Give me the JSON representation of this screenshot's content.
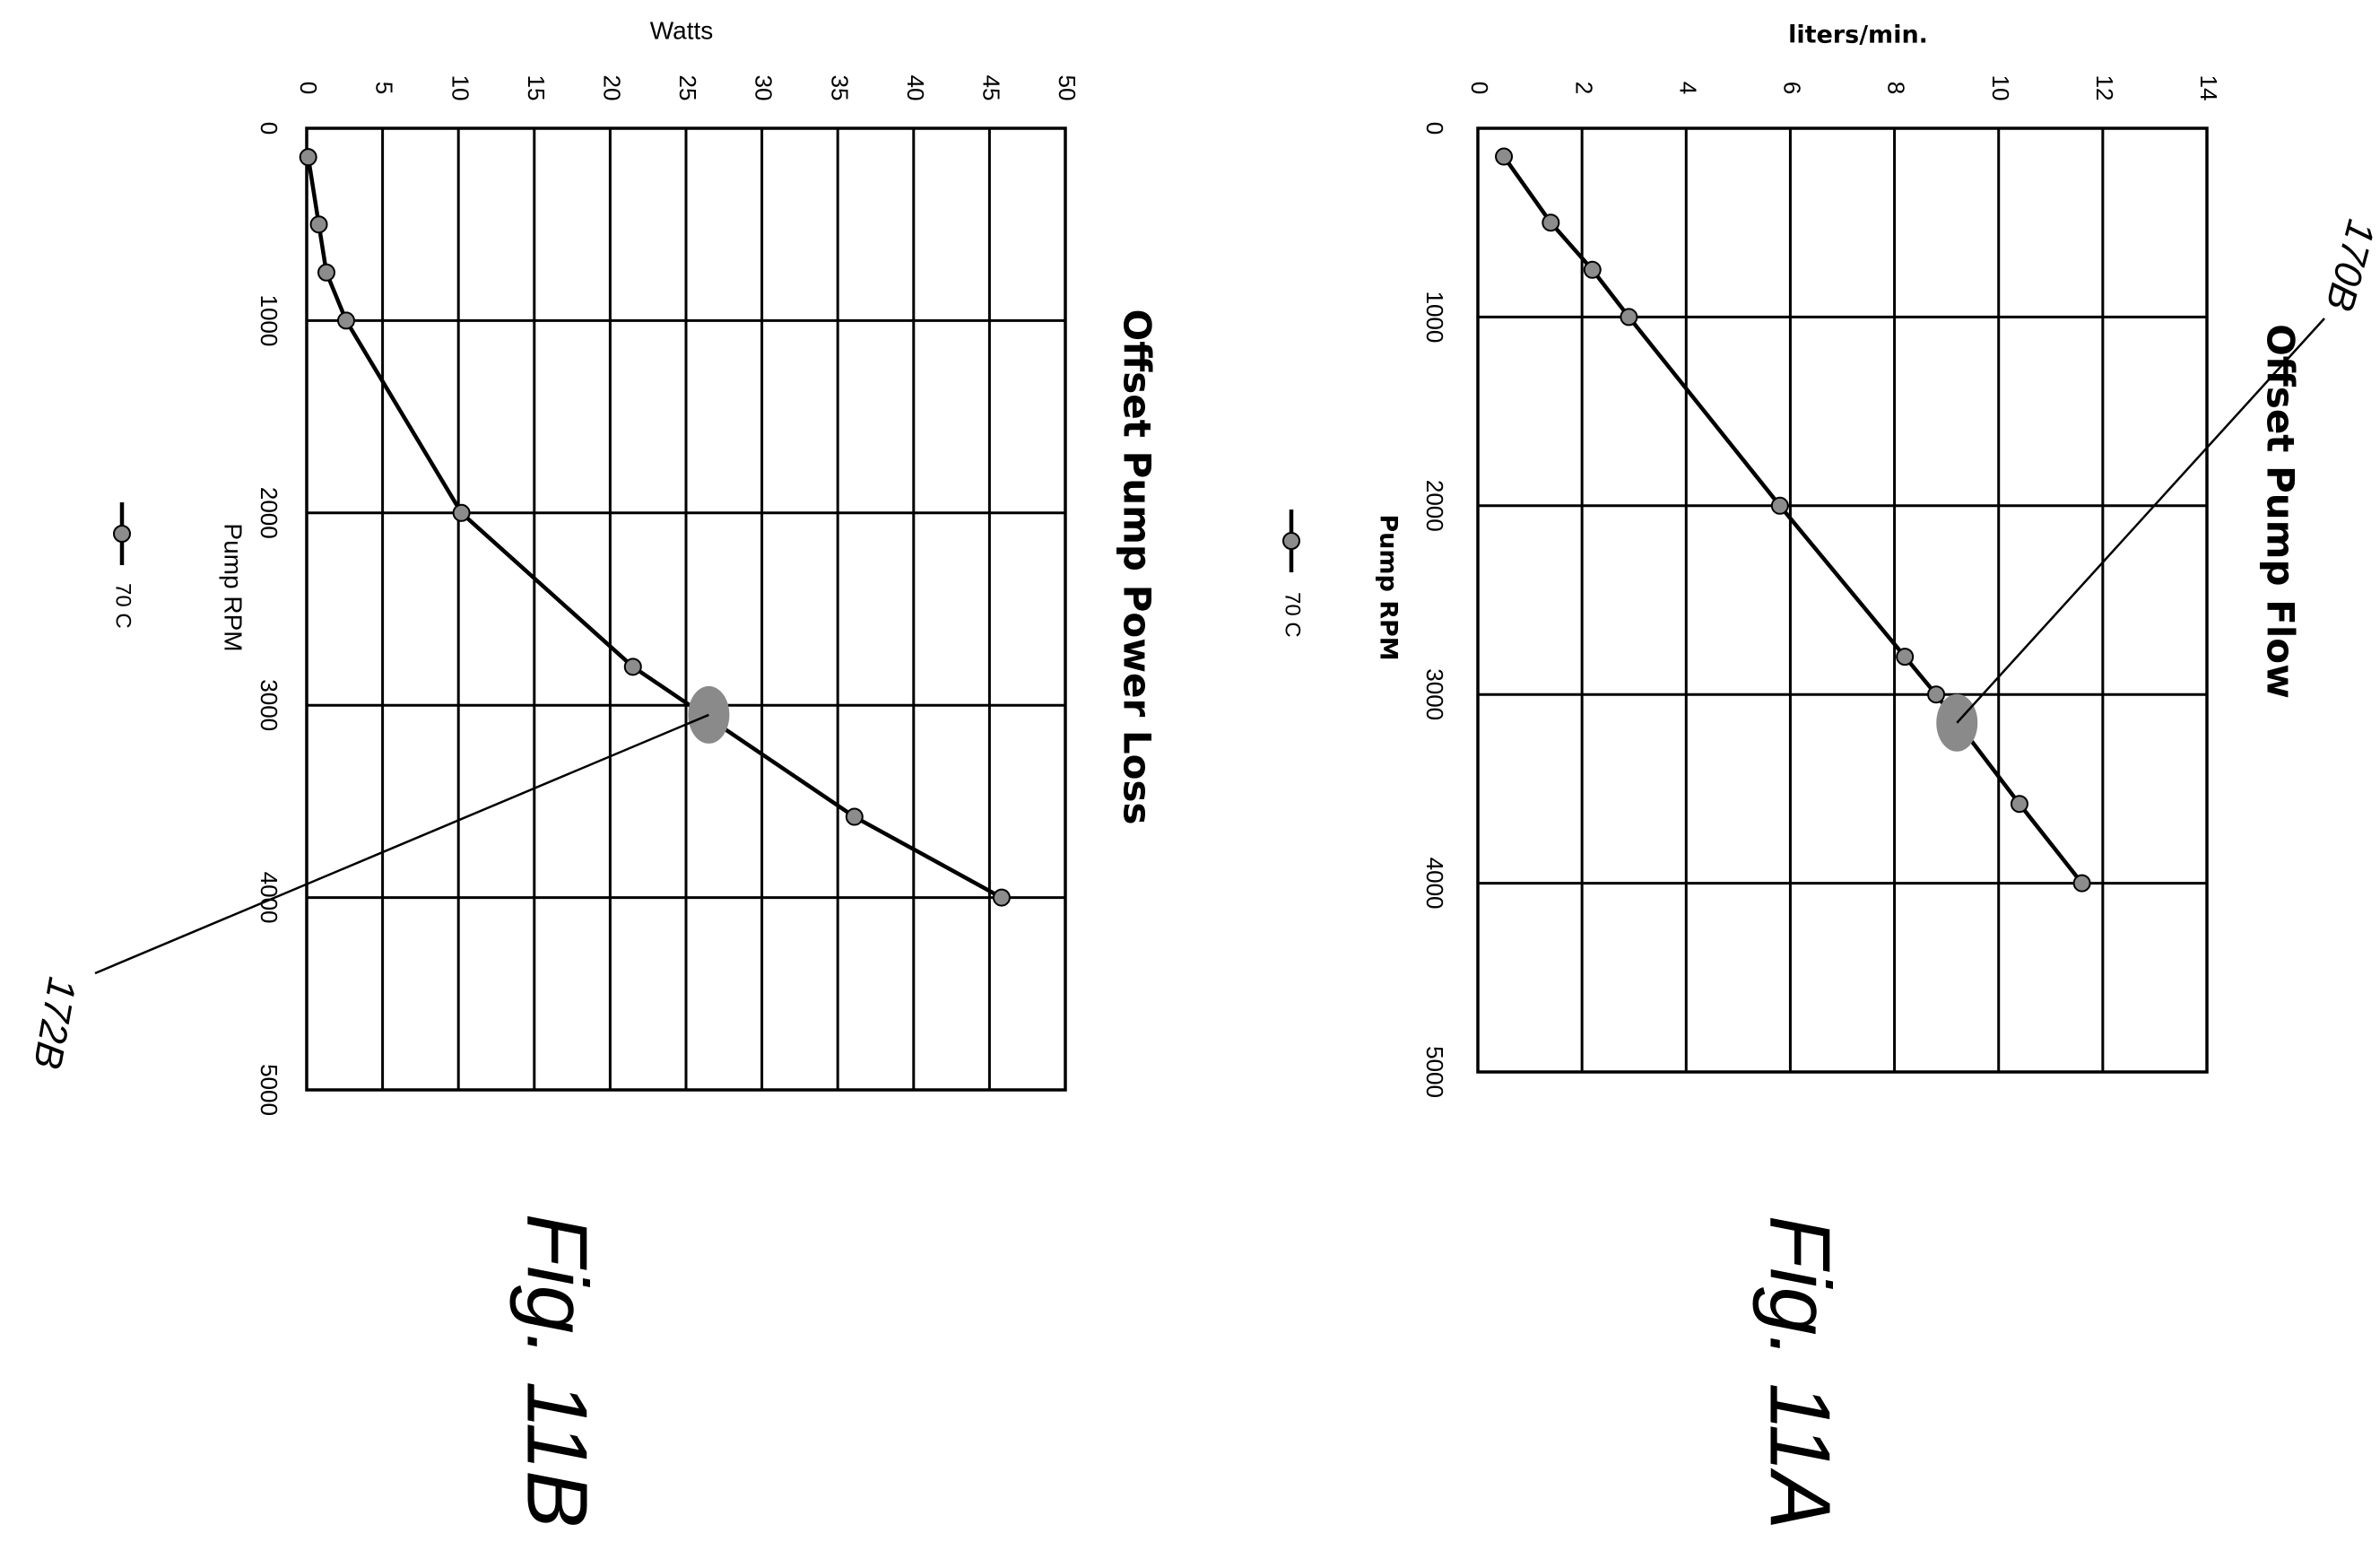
{
  "chart_data": [
    {
      "type": "line",
      "title": "Offset Pump Flow",
      "xlabel": "Pump RPM",
      "ylabel": "liters/min.",
      "xlim": [
        0,
        5000
      ],
      "ylim": [
        0,
        14
      ],
      "x_ticks": [
        "0",
        "1000",
        "2000",
        "3000",
        "4000",
        "5000"
      ],
      "y_ticks": [
        "0",
        "2",
        "4",
        "6",
        "8",
        "10",
        "12",
        "14"
      ],
      "grid": true,
      "legend_position": "bottom",
      "series": [
        {
          "name": "70 C",
          "x": [
            150,
            500,
            750,
            1000,
            2000,
            2800,
            3000,
            3580,
            4000
          ],
          "y": [
            0.5,
            1.4,
            2.2,
            2.9,
            5.8,
            8.2,
            8.8,
            10.4,
            11.6
          ]
        }
      ],
      "annotations": [
        {
          "label": "170B",
          "x": 3150,
          "y": 9.2
        }
      ],
      "figure_label": "Fig. 11A"
    },
    {
      "type": "line",
      "title": "Offset Pump Power Loss",
      "xlabel": "Pump RPM",
      "ylabel": "Watts",
      "xlim": [
        0,
        5000
      ],
      "ylim": [
        0,
        50
      ],
      "x_ticks": [
        "0",
        "1000",
        "2000",
        "3000",
        "4000",
        "5000"
      ],
      "y_ticks": [
        "0",
        "5",
        "10",
        "15",
        "20",
        "25",
        "30",
        "35",
        "40",
        "45",
        "50"
      ],
      "grid": true,
      "legend_position": "bottom",
      "series": [
        {
          "name": "70 C",
          "x": [
            150,
            500,
            750,
            1000,
            2000,
            2800,
            3580,
            4000
          ],
          "y": [
            0.1,
            0.8,
            1.3,
            2.6,
            10.2,
            21.5,
            36.1,
            45.8
          ]
        }
      ],
      "annotations": [
        {
          "label": "172B",
          "x": 3050,
          "y": 26.5
        }
      ],
      "figure_label": "Fig. 11B"
    }
  ]
}
